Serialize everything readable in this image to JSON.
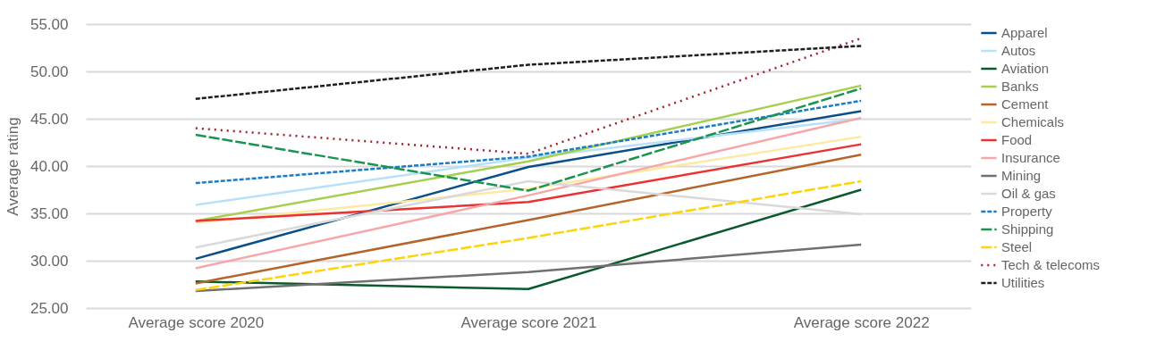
{
  "chart_data": {
    "type": "line",
    "ylabel": "Average rating",
    "categories": [
      "Average score 2020",
      "Average score 2021",
      "Average score 2022"
    ],
    "ylim": [
      25,
      55
    ],
    "yticks": [
      {
        "value": 25,
        "label": "25.00"
      },
      {
        "value": 30,
        "label": "30.00"
      },
      {
        "value": 35,
        "label": "35.00"
      },
      {
        "value": 40,
        "label": "40.00"
      },
      {
        "value": 45,
        "label": "45.00"
      },
      {
        "value": 50,
        "label": "50.00"
      },
      {
        "value": 55,
        "label": "55.00"
      }
    ],
    "grid": "y",
    "legend": "right",
    "marker": "none",
    "series": [
      {
        "name": "Apparel",
        "color": "#0b4f8a",
        "values": [
          30.2,
          39.9,
          45.8
        ]
      },
      {
        "name": "Autos",
        "color": "#b7e1f7",
        "values": [
          35.9,
          40.9,
          45.0
        ]
      },
      {
        "name": "Aviation",
        "color": "#0b5a2c",
        "values": [
          27.8,
          27.0,
          37.5
        ]
      },
      {
        "name": "Banks",
        "color": "#a6cf4f",
        "values": [
          34.2,
          40.5,
          48.5
        ]
      },
      {
        "name": "Cement",
        "color": "#b5652b",
        "values": [
          27.6,
          34.3,
          41.2
        ]
      },
      {
        "name": "Chemicals",
        "color": "#fde9a0",
        "values": [
          34.0,
          37.6,
          43.1
        ]
      },
      {
        "name": "Food",
        "color": "#ea3232",
        "values": [
          34.2,
          36.2,
          42.3
        ]
      },
      {
        "name": "Insurance",
        "color": "#f6a7a9",
        "values": [
          29.2,
          36.9,
          45.1
        ]
      },
      {
        "name": "Mining",
        "color": "#707070",
        "values": [
          26.8,
          28.8,
          31.7
        ]
      },
      {
        "name": "Oil & gas",
        "color": "#d9d9d9",
        "values": [
          31.4,
          38.4,
          34.9
        ]
      },
      {
        "name": "Property",
        "color": "#1a7cc6",
        "values": [
          38.2,
          41.0,
          46.9
        ],
        "line_style": "dashed"
      },
      {
        "name": "Shipping",
        "color": "#1a9450",
        "values": [
          43.3,
          37.4,
          48.2
        ],
        "line_style": "longdash"
      },
      {
        "name": "Steel",
        "color": "#fdd30a",
        "values": [
          26.9,
          32.4,
          38.4
        ],
        "line_style": "longdash"
      },
      {
        "name": "Tech & telecoms",
        "color": "#a3212a",
        "values": [
          44.0,
          41.3,
          53.5
        ],
        "line_style": "dotted"
      },
      {
        "name": "Utilities",
        "color": "#1e1e1e",
        "values": [
          47.1,
          50.7,
          52.7
        ],
        "line_style": "dashed"
      }
    ]
  }
}
